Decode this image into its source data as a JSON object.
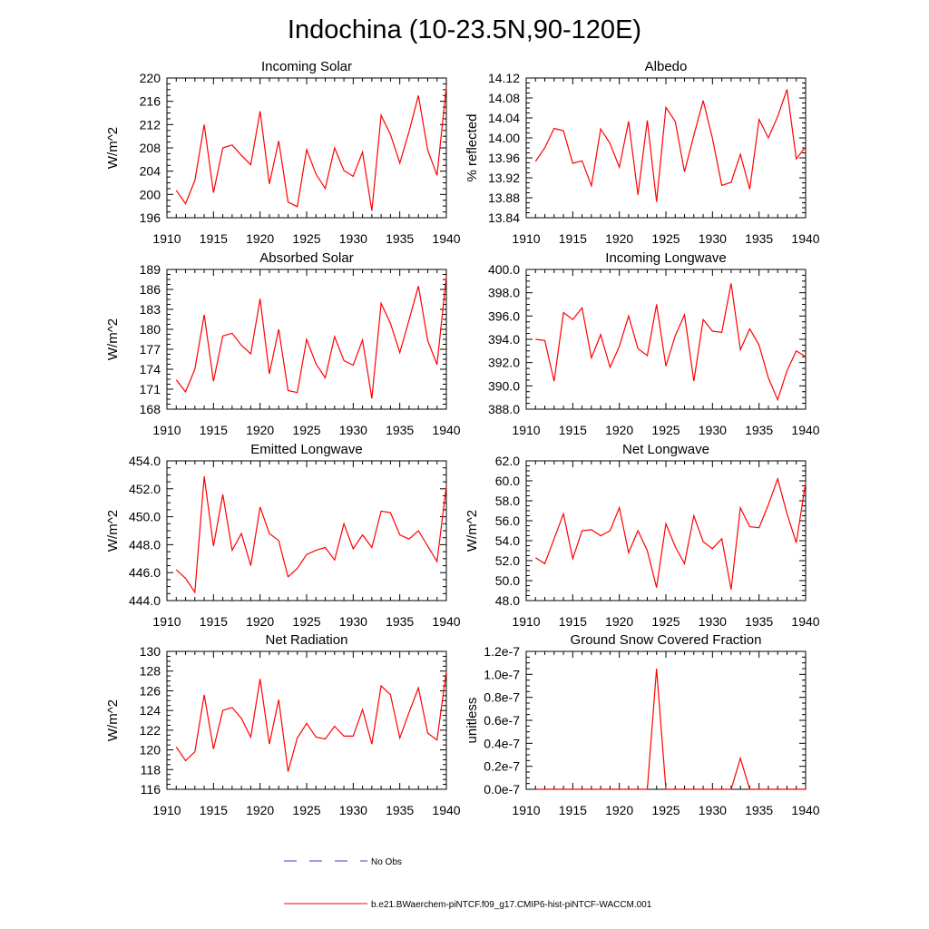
{
  "figure": {
    "title": "Indochina (10-23.5N,90-120E)",
    "legend": [
      {
        "label": "No Obs",
        "color": "#3b3bd6",
        "style": "dashed"
      },
      {
        "label": "b.e21.BWaerchem-piNTCF.f09_g17.CMIP6-hist-piNTCF-WACCM.001",
        "color": "#ff0000",
        "style": "solid"
      }
    ]
  },
  "chart_data": [
    {
      "type": "line",
      "title": "Incoming Solar",
      "ylabel": "W/m^2",
      "xlim": [
        1910,
        1940
      ],
      "ylim": [
        196,
        220
      ],
      "xticks": [
        "1910",
        "1915",
        "1920",
        "1925",
        "1930",
        "1935",
        "1940"
      ],
      "yticks": [
        "196",
        "200",
        "204",
        "208",
        "212",
        "216",
        "220"
      ],
      "x": [
        1911,
        1912,
        1913,
        1914,
        1915,
        1916,
        1917,
        1918,
        1919,
        1920,
        1921,
        1922,
        1923,
        1924,
        1925,
        1926,
        1927,
        1928,
        1929,
        1930,
        1931,
        1932,
        1933,
        1934,
        1935,
        1936,
        1937,
        1938,
        1939,
        1940
      ],
      "series": [
        {
          "color": "#ff0000",
          "values": [
            200.7,
            198.4,
            202.4,
            212.0,
            200.3,
            208.0,
            208.5,
            206.7,
            205.1,
            214.3,
            201.8,
            209.2,
            198.7,
            197.9,
            207.7,
            203.5,
            201.0,
            208.0,
            204.1,
            203.1,
            207.3,
            197.2,
            213.6,
            210.3,
            205.4,
            210.8,
            217.0,
            207.6,
            203.3,
            218.5
          ]
        }
      ]
    },
    {
      "type": "line",
      "title": "Albedo",
      "ylabel": "% reflected",
      "xlim": [
        1910,
        1940
      ],
      "ylim": [
        13.84,
        14.12
      ],
      "xticks": [
        "1910",
        "1915",
        "1920",
        "1925",
        "1930",
        "1935",
        "1940"
      ],
      "yticks": [
        "13.84",
        "13.88",
        "13.92",
        "13.96",
        "14.00",
        "14.04",
        "14.08",
        "14.12"
      ],
      "x": [
        1911,
        1912,
        1913,
        1914,
        1915,
        1916,
        1917,
        1918,
        1919,
        1920,
        1921,
        1922,
        1923,
        1924,
        1925,
        1926,
        1927,
        1928,
        1929,
        1930,
        1931,
        1932,
        1933,
        1934,
        1935,
        1936,
        1937,
        1938,
        1939,
        1940
      ],
      "series": [
        {
          "color": "#ff0000",
          "values": [
            13.953,
            13.98,
            14.019,
            14.014,
            13.949,
            13.954,
            13.904,
            14.018,
            13.989,
            13.941,
            14.033,
            13.886,
            14.035,
            13.872,
            14.061,
            14.033,
            13.932,
            14.005,
            14.075,
            13.999,
            13.905,
            13.911,
            13.967,
            13.897,
            14.037,
            14.0,
            14.043,
            14.097,
            13.958,
            13.982
          ]
        }
      ]
    },
    {
      "type": "line",
      "title": "Absorbed Solar",
      "ylabel": "W/m^2",
      "xlim": [
        1910,
        1940
      ],
      "ylim": [
        168,
        189
      ],
      "xticks": [
        "1910",
        "1915",
        "1920",
        "1925",
        "1930",
        "1935",
        "1940"
      ],
      "yticks": [
        "168",
        "171",
        "174",
        "177",
        "180",
        "183",
        "186",
        "189"
      ],
      "x": [
        1911,
        1912,
        1913,
        1914,
        1915,
        1916,
        1917,
        1918,
        1919,
        1920,
        1921,
        1922,
        1923,
        1924,
        1925,
        1926,
        1927,
        1928,
        1929,
        1930,
        1931,
        1932,
        1933,
        1934,
        1935,
        1936,
        1937,
        1938,
        1939,
        1940
      ],
      "series": [
        {
          "color": "#ff0000",
          "values": [
            172.4,
            170.6,
            174.0,
            182.2,
            172.2,
            179.0,
            179.4,
            177.6,
            176.3,
            184.6,
            173.3,
            180.0,
            170.8,
            170.5,
            178.5,
            174.8,
            172.7,
            178.9,
            175.3,
            174.6,
            178.4,
            169.6,
            183.9,
            180.9,
            176.5,
            181.4,
            186.5,
            178.3,
            174.7,
            188.0
          ]
        }
      ]
    },
    {
      "type": "line",
      "title": "Incoming Longwave",
      "ylabel": "",
      "xlim": [
        1910,
        1940
      ],
      "ylim": [
        388.0,
        400.0
      ],
      "xticks": [
        "1910",
        "1915",
        "1920",
        "1925",
        "1930",
        "1935",
        "1940"
      ],
      "yticks": [
        "388.0",
        "390.0",
        "392.0",
        "394.0",
        "396.0",
        "398.0",
        "400.0"
      ],
      "x": [
        1911,
        1912,
        1913,
        1914,
        1915,
        1916,
        1917,
        1918,
        1919,
        1920,
        1921,
        1922,
        1923,
        1924,
        1925,
        1926,
        1927,
        1928,
        1929,
        1930,
        1931,
        1932,
        1933,
        1934,
        1935,
        1936,
        1937,
        1938,
        1939,
        1940
      ],
      "series": [
        {
          "color": "#ff0000",
          "values": [
            394.0,
            393.9,
            390.4,
            396.3,
            395.7,
            396.7,
            392.4,
            394.4,
            391.6,
            393.4,
            396.0,
            393.2,
            392.6,
            397.0,
            391.7,
            394.3,
            396.1,
            390.4,
            395.7,
            394.7,
            394.6,
            398.8,
            393.1,
            394.9,
            393.5,
            390.7,
            388.8,
            391.3,
            393.0,
            392.5
          ]
        }
      ]
    },
    {
      "type": "line",
      "title": "Emitted Longwave",
      "ylabel": "W/m^2",
      "xlim": [
        1910,
        1940
      ],
      "ylim": [
        444.0,
        454.0
      ],
      "xticks": [
        "1910",
        "1915",
        "1920",
        "1925",
        "1930",
        "1935",
        "1940"
      ],
      "yticks": [
        "444.0",
        "446.0",
        "448.0",
        "450.0",
        "452.0",
        "454.0"
      ],
      "x": [
        1911,
        1912,
        1913,
        1914,
        1915,
        1916,
        1917,
        1918,
        1919,
        1920,
        1921,
        1922,
        1923,
        1924,
        1925,
        1926,
        1927,
        1928,
        1929,
        1930,
        1931,
        1932,
        1933,
        1934,
        1935,
        1936,
        1937,
        1938,
        1939,
        1940
      ],
      "series": [
        {
          "color": "#ff0000",
          "values": [
            446.2,
            445.6,
            444.6,
            452.9,
            447.9,
            451.6,
            447.6,
            448.8,
            446.5,
            450.7,
            448.8,
            448.3,
            445.7,
            446.3,
            447.3,
            447.6,
            447.8,
            446.9,
            449.5,
            447.7,
            448.7,
            447.8,
            450.4,
            450.3,
            448.7,
            448.4,
            449.0,
            447.9,
            446.8,
            452.2
          ]
        }
      ]
    },
    {
      "type": "line",
      "title": "Net Longwave",
      "ylabel": "W/m^2",
      "xlim": [
        1910,
        1940
      ],
      "ylim": [
        48.0,
        62.0
      ],
      "xticks": [
        "1910",
        "1915",
        "1920",
        "1925",
        "1930",
        "1935",
        "1940"
      ],
      "yticks": [
        "48.0",
        "50.0",
        "52.0",
        "54.0",
        "56.0",
        "58.0",
        "60.0",
        "62.0"
      ],
      "x": [
        1911,
        1912,
        1913,
        1914,
        1915,
        1916,
        1917,
        1918,
        1919,
        1920,
        1921,
        1922,
        1923,
        1924,
        1925,
        1926,
        1927,
        1928,
        1929,
        1930,
        1931,
        1932,
        1933,
        1934,
        1935,
        1936,
        1937,
        1938,
        1939,
        1940
      ],
      "series": [
        {
          "color": "#ff0000",
          "values": [
            52.3,
            51.7,
            54.2,
            56.7,
            52.2,
            55.0,
            55.1,
            54.5,
            55.0,
            57.3,
            52.8,
            55.0,
            53.0,
            49.3,
            55.7,
            53.4,
            51.7,
            56.5,
            53.9,
            53.2,
            54.2,
            49.1,
            57.3,
            55.4,
            55.3,
            57.6,
            60.2,
            56.7,
            53.8,
            59.8
          ]
        }
      ]
    },
    {
      "type": "line",
      "title": "Net Radiation",
      "ylabel": "W/m^2",
      "xlim": [
        1910,
        1940
      ],
      "ylim": [
        116,
        130
      ],
      "xticks": [
        "1910",
        "1915",
        "1920",
        "1925",
        "1930",
        "1935",
        "1940"
      ],
      "yticks": [
        "116",
        "118",
        "120",
        "122",
        "124",
        "126",
        "128",
        "130"
      ],
      "x": [
        1911,
        1912,
        1913,
        1914,
        1915,
        1916,
        1917,
        1918,
        1919,
        1920,
        1921,
        1922,
        1923,
        1924,
        1925,
        1926,
        1927,
        1928,
        1929,
        1930,
        1931,
        1932,
        1933,
        1934,
        1935,
        1936,
        1937,
        1938,
        1939,
        1940
      ],
      "series": [
        {
          "color": "#ff0000",
          "values": [
            120.3,
            118.9,
            119.8,
            125.6,
            120.1,
            124.0,
            124.3,
            123.2,
            121.3,
            127.2,
            120.6,
            125.1,
            117.8,
            121.2,
            122.7,
            121.3,
            121.1,
            122.4,
            121.4,
            121.4,
            124.1,
            120.6,
            126.5,
            125.6,
            121.2,
            123.8,
            126.3,
            121.7,
            121.0,
            128.0
          ]
        }
      ]
    },
    {
      "type": "line",
      "title": "Ground Snow Covered Fraction",
      "ylabel": "unitless",
      "xlim": [
        1910,
        1940
      ],
      "ylim": [
        0.0,
        1.2
      ],
      "y_scale_note": "e-7",
      "xticks": [
        "1910",
        "1915",
        "1920",
        "1925",
        "1930",
        "1935",
        "1940"
      ],
      "yticks": [
        "0.0e-7",
        "0.2e-7",
        "0.4e-7",
        "0.6e-7",
        "0.8e-7",
        "1.0e-7",
        "1.2e-7"
      ],
      "x": [
        1911,
        1912,
        1913,
        1914,
        1915,
        1916,
        1917,
        1918,
        1919,
        1920,
        1921,
        1922,
        1923,
        1924,
        1925,
        1926,
        1927,
        1928,
        1929,
        1930,
        1931,
        1932,
        1933,
        1934,
        1935,
        1936,
        1937,
        1938,
        1939,
        1940
      ],
      "series": [
        {
          "color": "#ff0000",
          "values": [
            0,
            0,
            0,
            0,
            0,
            0,
            0,
            0,
            0,
            0,
            0,
            0,
            0,
            1.05,
            0,
            0,
            0,
            0,
            0,
            0,
            0,
            0,
            0.27,
            0,
            0,
            0,
            0,
            0,
            0,
            0
          ]
        }
      ]
    }
  ]
}
